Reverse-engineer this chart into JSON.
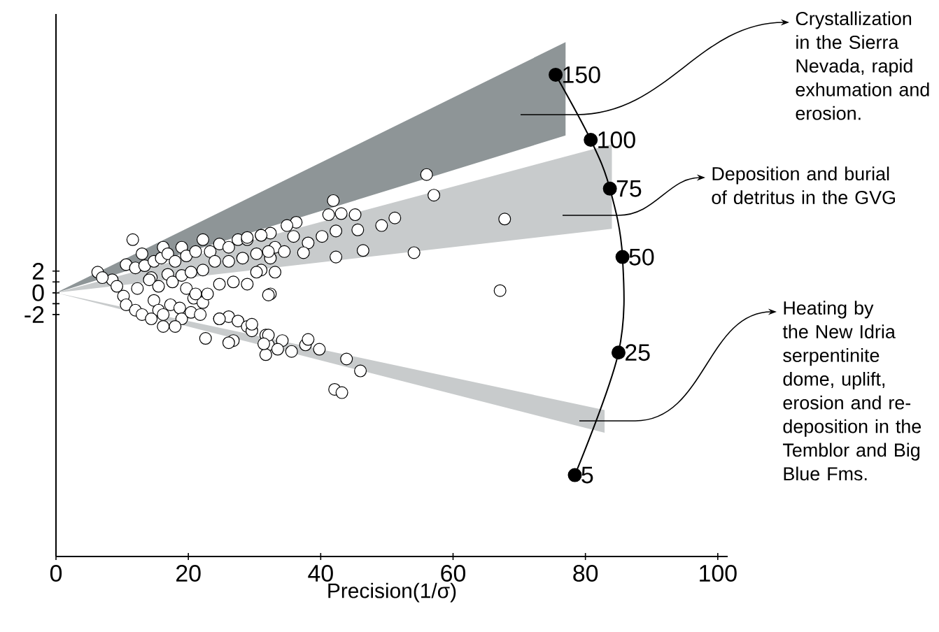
{
  "chart_data": {
    "type": "scatter",
    "xlabel": "Precision(1/σ)",
    "xlim": [
      0,
      101.5
    ],
    "ylim": [
      -24.3,
      25.7
    ],
    "xticks": [
      0,
      20,
      40,
      60,
      80,
      100
    ],
    "yticks": [
      -2,
      {
        "value": -1,
        "label": null
      },
      0,
      {
        "value": 1,
        "label": null
      },
      2
    ],
    "series": [
      {
        "type": "line",
        "color": "#8e9597",
        "x": [
          0,
          77
        ],
        "values": [
          null,
          null
        ],
        "lower": [
          0,
          14.5
        ],
        "upper": [
          0,
          23.1
        ]
      },
      {
        "type": "line",
        "color": "#c8cbcc",
        "x": [
          0,
          84
        ],
        "values": [
          null,
          null
        ],
        "lower": [
          0,
          5.9
        ],
        "upper": [
          0,
          13.7
        ]
      },
      {
        "type": "line",
        "color": "#c8cbcc",
        "x": [
          0,
          82.9
        ],
        "values": [
          null,
          null
        ],
        "lower": [
          0,
          -12.9
        ],
        "upper": [
          0,
          -10.8
        ]
      },
      {
        "color": "#ffffff",
        "marker": "circle",
        "x": [
          6.3,
          8.5,
          9.2,
          11.6,
          10.6,
          12.0,
          13.0,
          13.4,
          14.8,
          14.4,
          15.9,
          16.2,
          16.9,
          18.0,
          19.0,
          19.7,
          21.1,
          22.2,
          23.3,
          24.7,
          26.1,
          27.5,
          28.9,
          31.0,
          32.4,
          33.1,
          12.3,
          14.1,
          15.5,
          16.9,
          17.6,
          19.0,
          20.4,
          22.2,
          24.0,
          26.1,
          28.2,
          30.3,
          32.4,
          31.0,
          32.4,
          10.2,
          10.6,
          12.0,
          13.0,
          14.8,
          15.5,
          14.4,
          16.2,
          17.3,
          18.7,
          19.0,
          20.4,
          20.8,
          22.2,
          21.8,
          18.0,
          16.2,
          22.6,
          24.7,
          26.1,
          27.5,
          28.9,
          26.8,
          29.6,
          31.7,
          32.1,
          31.7,
          7.0,
          19.7,
          21.1,
          22.9,
          24.7,
          26.8,
          28.9,
          30.3,
          56.0,
          57.1,
          67.8,
          67.1,
          41.9,
          41.2,
          43.1,
          45.2,
          49.2,
          51.2,
          54.1,
          42.3,
          45.6,
          40.2,
          46.4,
          42.3,
          38.1,
          37.4,
          36.3,
          34.9,
          35.9,
          34.5,
          33.1,
          32.1,
          32.1,
          34.2,
          31.4,
          33.5,
          35.6,
          37.7,
          38.1,
          39.8,
          43.9,
          46.0,
          42.1,
          43.2,
          29.6,
          26.1,
          24.7,
          32.1,
          31.0,
          28.9
        ],
        "values": [
          1.9,
          1.2,
          0.6,
          4.9,
          2.6,
          2.3,
          3.6,
          2.5,
          2.9,
          1.4,
          3.2,
          4.2,
          3.6,
          2.9,
          4.2,
          3.4,
          3.8,
          4.9,
          3.8,
          4.5,
          4.2,
          4.9,
          4.9,
          5.3,
          5.5,
          4.2,
          0.4,
          1.2,
          0.6,
          1.7,
          1.0,
          1.6,
          1.9,
          2.1,
          2.9,
          2.9,
          3.2,
          3.6,
          3.2,
          2.1,
          -0.1,
          -0.3,
          -1.1,
          -1.6,
          -2.0,
          -0.7,
          -1.6,
          -2.4,
          -2.0,
          -1.1,
          -1.4,
          -2.4,
          -1.8,
          -0.5,
          -0.9,
          -2.0,
          -3.1,
          -3.1,
          -4.2,
          -2.4,
          -2.2,
          -2.6,
          -3.1,
          -4.4,
          -3.5,
          -3.9,
          -4.8,
          -5.7,
          1.4,
          0.4,
          -0.1,
          -0.1,
          0.8,
          1.0,
          0.8,
          1.9,
          10.9,
          9.0,
          6.8,
          0.2,
          8.5,
          7.2,
          7.3,
          7.2,
          6.2,
          6.9,
          3.7,
          5.7,
          5.8,
          5.2,
          3.9,
          3.3,
          4.6,
          3.7,
          6.5,
          6.2,
          5.2,
          3.8,
          1.9,
          -0.2,
          -3.9,
          -4.4,
          -4.7,
          -5.2,
          -5.4,
          -4.8,
          -4.3,
          -5.2,
          -6.1,
          -7.2,
          -8.9,
          -9.2,
          -2.9,
          -4.6,
          -2.4,
          3.8,
          5.3,
          5.1
        ]
      },
      {
        "type": "line",
        "color": "#000000",
        "marker": "circle",
        "x": [
          75.5,
          80.8,
          83.7,
          85.6,
          85.0,
          78.4
        ],
        "values": [
          20.1,
          14.1,
          9.6,
          3.3,
          -5.5,
          -16.8
        ]
      }
    ],
    "annotations": [
      "Crystallization in the Sierra Nevada, rapid exhumation and erosion.",
      "Deposition and burial of detritus in the GVG",
      "Heating by the New Idria serpentinite dome, uplift, erosion and re-deposition in the Temblor and Big Blue Fms.",
      {
        "text": "150",
        "x": 75.5,
        "y": 20.1
      },
      {
        "text": "100",
        "x": 80.8,
        "y": 14.1
      },
      {
        "text": "75",
        "x": 83.7,
        "y": 9.6
      },
      {
        "text": "50",
        "x": 85.6,
        "y": 3.3
      },
      {
        "text": "25",
        "x": 85.0,
        "y": -5.5
      },
      {
        "text": "5",
        "x": 78.4,
        "y": -16.8
      }
    ]
  }
}
